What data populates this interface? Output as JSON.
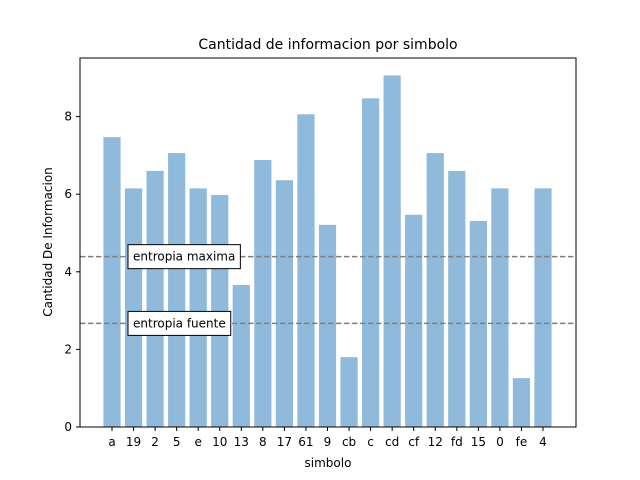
{
  "chart_data": {
    "type": "bar",
    "title": "Cantidad de informacion por simbolo",
    "xlabel": "simbolo",
    "ylabel": "Cantidad De Informacion",
    "categories": [
      "a",
      "19",
      "2",
      "5",
      "e",
      "10",
      "13",
      "8",
      "17",
      "61",
      "9",
      "cb",
      "c",
      "cd",
      "cf",
      "12",
      "fd",
      "15",
      "0",
      "fe",
      "4"
    ],
    "values": [
      7.47,
      6.15,
      6.6,
      7.06,
      6.15,
      5.98,
      3.66,
      6.88,
      6.36,
      8.06,
      5.21,
      1.8,
      8.47,
      9.06,
      5.47,
      7.06,
      6.6,
      5.31,
      6.15,
      1.26,
      6.15
    ],
    "ylim": [
      0,
      9.51
    ],
    "yticks": [
      0,
      2,
      4,
      6,
      8
    ],
    "bar_color": "#8fbadb",
    "grid": false,
    "reference_lines": [
      {
        "label": "entropia maxima",
        "value": 4.39,
        "color": "#808080",
        "style": "dashed"
      },
      {
        "label": "entropia fuente",
        "value": 2.67,
        "color": "#808080",
        "style": "dashed"
      }
    ]
  }
}
